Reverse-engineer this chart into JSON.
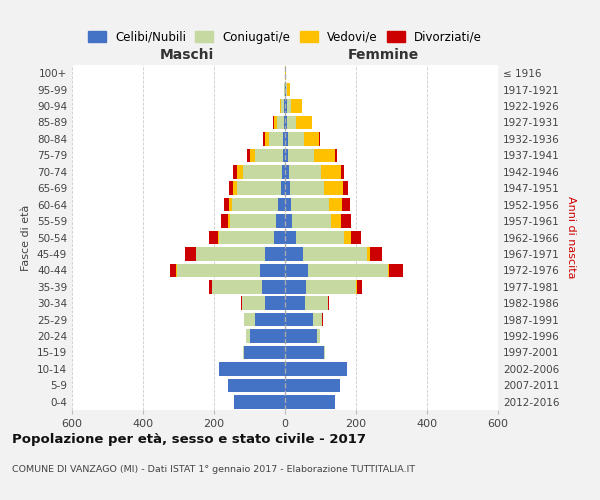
{
  "age_groups": [
    "0-4",
    "5-9",
    "10-14",
    "15-19",
    "20-24",
    "25-29",
    "30-34",
    "35-39",
    "40-44",
    "45-49",
    "50-54",
    "55-59",
    "60-64",
    "65-69",
    "70-74",
    "75-79",
    "80-84",
    "85-89",
    "90-94",
    "95-99",
    "100+"
  ],
  "birth_years": [
    "2012-2016",
    "2007-2011",
    "2002-2006",
    "1997-2001",
    "1992-1996",
    "1987-1991",
    "1982-1986",
    "1977-1981",
    "1972-1976",
    "1967-1971",
    "1962-1966",
    "1957-1961",
    "1952-1956",
    "1947-1951",
    "1942-1946",
    "1937-1941",
    "1932-1936",
    "1927-1931",
    "1922-1926",
    "1917-1921",
    "≤ 1916"
  ],
  "males_celibe": [
    145,
    160,
    185,
    115,
    100,
    85,
    55,
    65,
    70,
    55,
    30,
    25,
    20,
    10,
    8,
    5,
    5,
    3,
    2,
    0,
    0
  ],
  "males_coniugato": [
    0,
    0,
    0,
    3,
    10,
    30,
    65,
    140,
    235,
    195,
    155,
    130,
    130,
    125,
    110,
    80,
    40,
    20,
    8,
    2,
    0
  ],
  "males_vedovo": [
    0,
    0,
    0,
    0,
    0,
    0,
    0,
    0,
    1,
    2,
    3,
    5,
    8,
    12,
    18,
    15,
    12,
    8,
    5,
    2,
    0
  ],
  "males_divorziato": [
    0,
    0,
    0,
    0,
    0,
    0,
    3,
    10,
    18,
    30,
    25,
    20,
    15,
    12,
    10,
    8,
    5,
    2,
    0,
    0,
    0
  ],
  "females_nubile": [
    140,
    155,
    175,
    110,
    90,
    80,
    55,
    60,
    65,
    50,
    30,
    20,
    18,
    15,
    10,
    8,
    8,
    5,
    5,
    2,
    0
  ],
  "females_coniugata": [
    0,
    0,
    0,
    2,
    8,
    25,
    65,
    140,
    225,
    180,
    135,
    110,
    105,
    95,
    90,
    75,
    45,
    25,
    12,
    5,
    0
  ],
  "females_vedova": [
    0,
    0,
    0,
    0,
    0,
    0,
    0,
    2,
    4,
    10,
    20,
    28,
    38,
    52,
    58,
    58,
    42,
    45,
    30,
    8,
    2
  ],
  "females_divorziata": [
    0,
    0,
    0,
    0,
    0,
    2,
    5,
    14,
    38,
    32,
    30,
    28,
    22,
    15,
    8,
    5,
    3,
    2,
    0,
    0,
    0
  ],
  "color_celibe": "#4472c4",
  "color_coniugato": "#c5d9a0",
  "color_vedovo": "#ffc000",
  "color_divorziato": "#cc0000",
  "legend_labels": [
    "Celibi/Nubili",
    "Coniugati/e",
    "Vedovi/e",
    "Divorziati/e"
  ],
  "label_maschi": "Maschi",
  "label_femmine": "Femmine",
  "ylabel_left": "Fasce di età",
  "ylabel_right": "Anni di nascita",
  "xlim": 600,
  "title": "Popolazione per età, sesso e stato civile - 2017",
  "subtitle": "COMUNE DI VANZAGO (MI) - Dati ISTAT 1° gennaio 2017 - Elaborazione TUTTITALIA.IT",
  "bg_color": "#f2f2f2",
  "plot_bg_color": "#ffffff"
}
